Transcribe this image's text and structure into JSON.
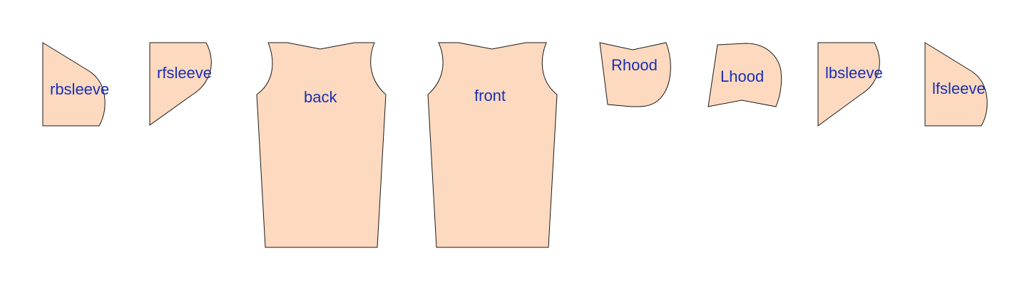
{
  "colors": {
    "fill": "#fdd9bf",
    "stroke": "#1a1a1a",
    "label": "#1a2fb5",
    "background": "#ffffff"
  },
  "pieces": {
    "rbsleeve": "rbsleeve",
    "rfsleeve": "rfsleeve",
    "back": "back",
    "front": "front",
    "rhood": "Rhood",
    "lhood": "Lhood",
    "lbsleeve": "lbsleeve",
    "lfsleeve": "lfsleeve"
  }
}
